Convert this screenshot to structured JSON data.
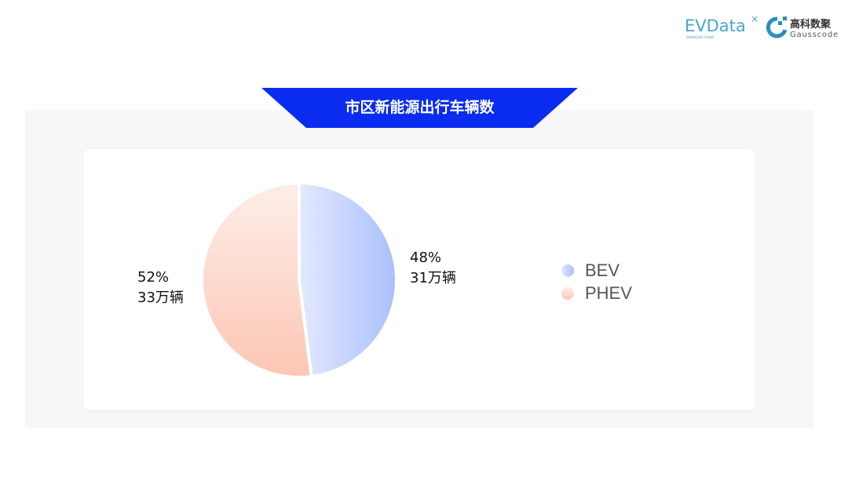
{
  "logos": {
    "evdata": "EVData",
    "evdata_sub": "SHANGHAI CHINA",
    "gausscode_cn": "高科数聚",
    "gausscode_en": "Gausscode"
  },
  "title": "市区新能源出行车辆数",
  "colors": {
    "banner": "#0a2cf0",
    "bev_start": "#e3e9fe",
    "bev_end": "#aabffc",
    "phev_start": "#fdeee8",
    "phev_end": "#fdc6b4",
    "panel": "#f8f6f6"
  },
  "chart_data": {
    "type": "pie",
    "title": "市区新能源出行车辆数",
    "legend_placement": "right",
    "slices": [
      {
        "name": "BEV",
        "percent": 48,
        "value_label": "31万辆",
        "percent_label": "48%"
      },
      {
        "name": "PHEV",
        "percent": 52,
        "value_label": "33万辆",
        "percent_label": "52%"
      }
    ]
  }
}
